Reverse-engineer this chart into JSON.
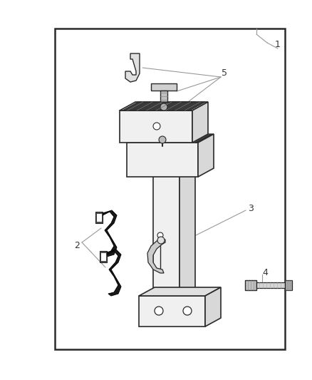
{
  "bg_color": "#ffffff",
  "border_color": "#2a2a2a",
  "line_color": "#2a2a2a",
  "gray_light": "#f0f0f0",
  "gray_mid": "#d8d8d8",
  "gray_dark": "#aaaaaa",
  "black_part": "#222222",
  "ref_line_color": "#999999",
  "label_color": "#333333",
  "label_fs": 9,
  "fig_w": 4.38,
  "fig_h": 5.33,
  "dpi": 100
}
